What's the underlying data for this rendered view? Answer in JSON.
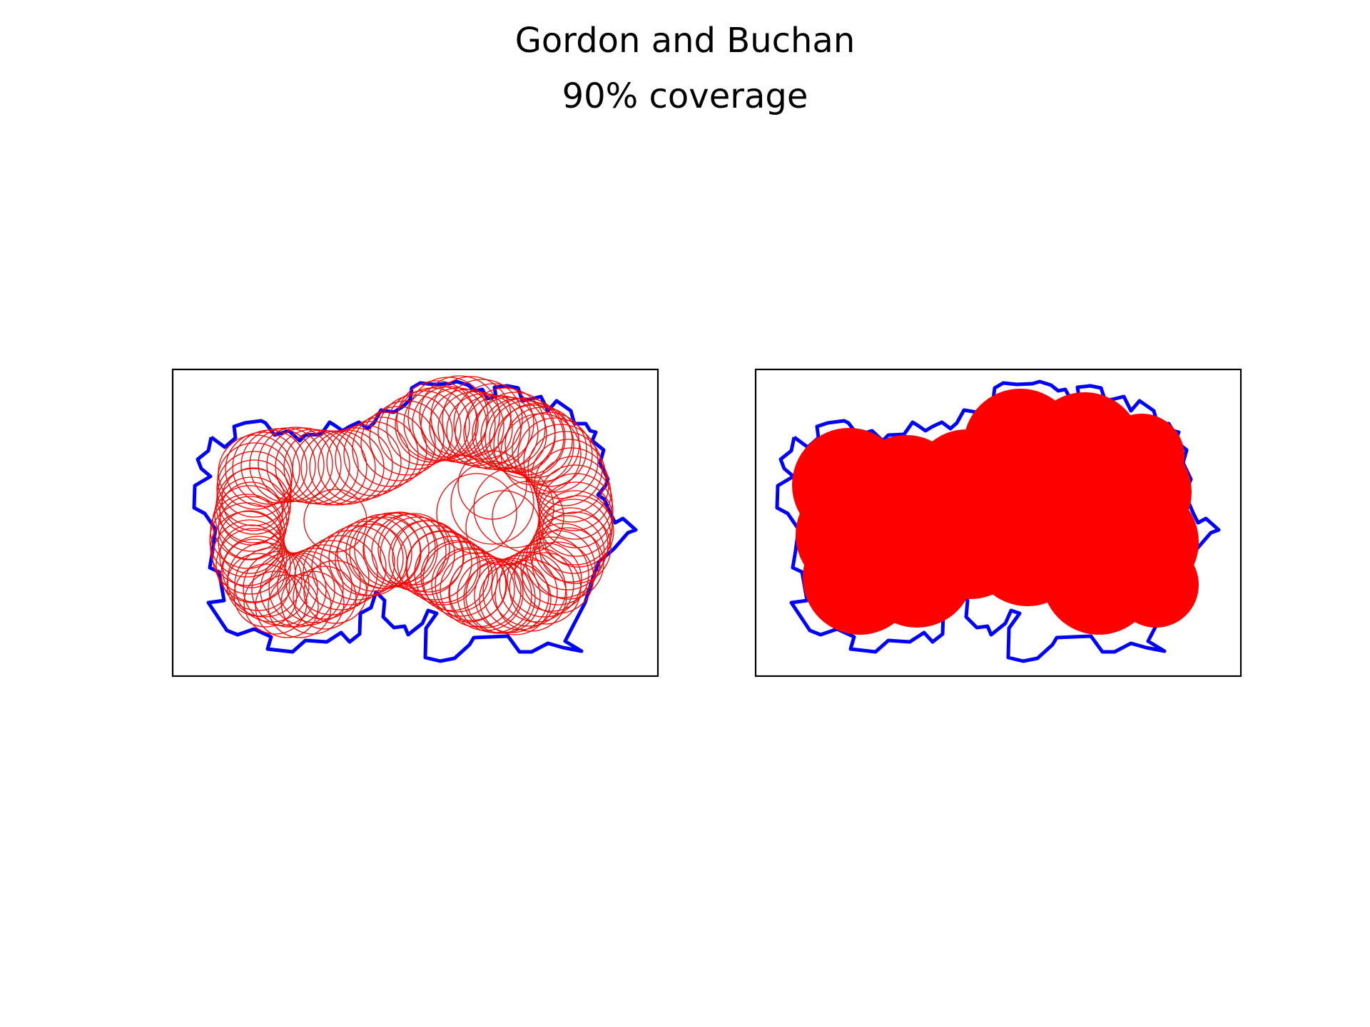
{
  "figure": {
    "title": "Gordon and Buchan",
    "subtitle": "90% coverage",
    "boundary_color": "#0000ff",
    "circle_color": "#ff0000",
    "frame_color": "#000000"
  },
  "panels": [
    {
      "name": "circle-outlines",
      "style": "outline"
    },
    {
      "name": "circle-union-filled",
      "style": "filled"
    }
  ]
}
